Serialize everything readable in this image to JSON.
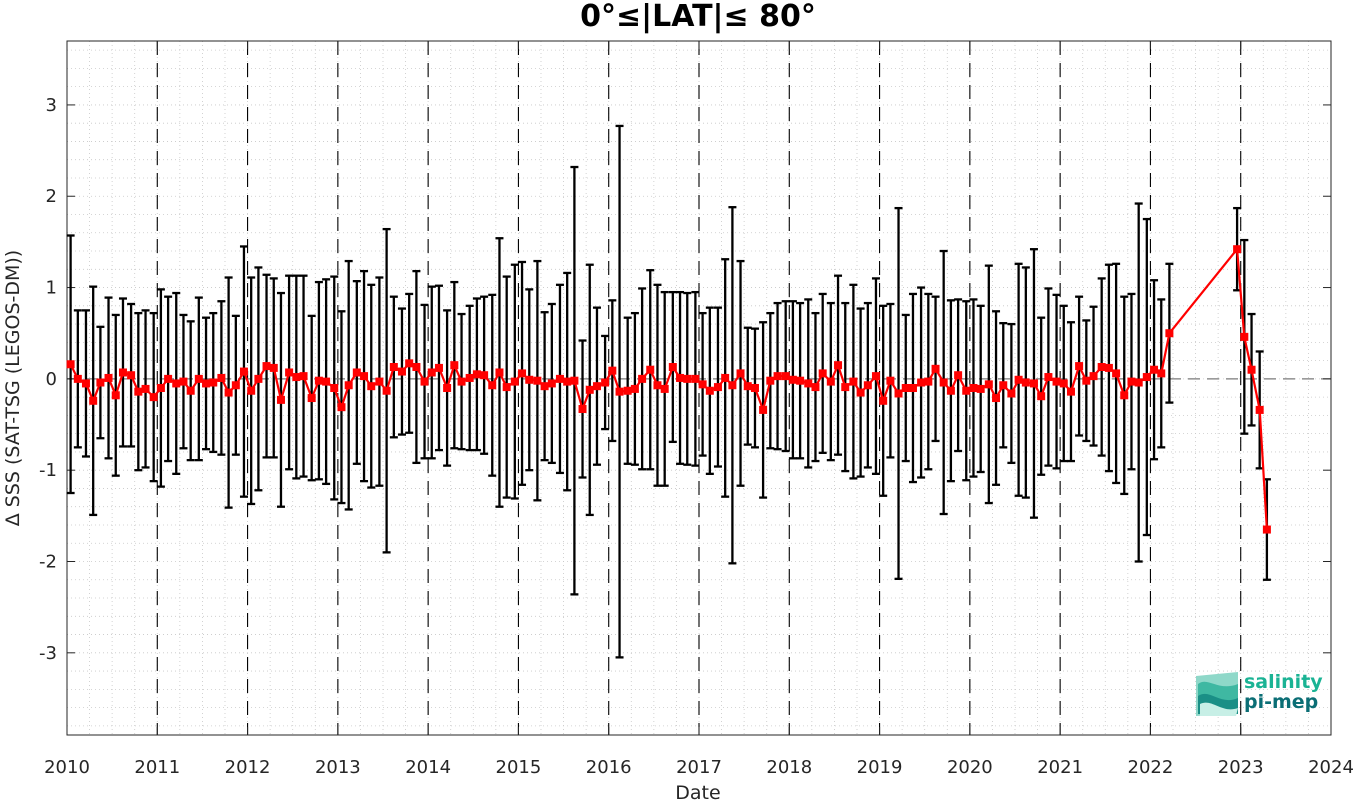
{
  "chart_data": {
    "type": "line",
    "title": "0°≤|LAT|≤ 80°",
    "xlabel": "Date",
    "ylabel": "Δ SSS (SAT-TSG (LEGOS-DM))",
    "xlim": [
      2010,
      2024
    ],
    "ylim": [
      -3.9,
      3.7
    ],
    "x_ticks": [
      2010,
      2011,
      2012,
      2013,
      2014,
      2015,
      2016,
      2017,
      2018,
      2019,
      2020,
      2021,
      2022,
      2023,
      2024
    ],
    "y_ticks": [
      -3,
      -2,
      -1,
      0,
      1,
      2,
      3
    ],
    "grid": "dotted minor grid; dashed vertical lines at year boundaries; dashed horizontal line at zero",
    "legend": "none",
    "series": [
      {
        "color": "#ff0000",
        "marker": "square",
        "error_bar_color": "#000000",
        "points": [
          {
            "x": 2010.04,
            "y": 0.16,
            "err": 1.41
          },
          {
            "x": 2010.12,
            "y": 0.0,
            "err": 0.75
          },
          {
            "x": 2010.21,
            "y": -0.05,
            "err": 0.8
          },
          {
            "x": 2010.29,
            "y": -0.24,
            "err": 1.25
          },
          {
            "x": 2010.37,
            "y": -0.04,
            "err": 0.61
          },
          {
            "x": 2010.46,
            "y": 0.01,
            "err": 0.88
          },
          {
            "x": 2010.54,
            "y": -0.18,
            "err": 0.88
          },
          {
            "x": 2010.62,
            "y": 0.07,
            "err": 0.81
          },
          {
            "x": 2010.71,
            "y": 0.04,
            "err": 0.78
          },
          {
            "x": 2010.79,
            "y": -0.14,
            "err": 0.86
          },
          {
            "x": 2010.87,
            "y": -0.11,
            "err": 0.86
          },
          {
            "x": 2010.96,
            "y": -0.2,
            "err": 0.92
          },
          {
            "x": 2011.04,
            "y": -0.1,
            "err": 1.08
          },
          {
            "x": 2011.12,
            "y": 0.0,
            "err": 0.9
          },
          {
            "x": 2011.21,
            "y": -0.05,
            "err": 0.99
          },
          {
            "x": 2011.29,
            "y": -0.03,
            "err": 0.73
          },
          {
            "x": 2011.37,
            "y": -0.13,
            "err": 0.76
          },
          {
            "x": 2011.46,
            "y": 0.0,
            "err": 0.89
          },
          {
            "x": 2011.54,
            "y": -0.05,
            "err": 0.72
          },
          {
            "x": 2011.62,
            "y": -0.04,
            "err": 0.76
          },
          {
            "x": 2011.71,
            "y": 0.01,
            "err": 0.84
          },
          {
            "x": 2011.79,
            "y": -0.15,
            "err": 1.26
          },
          {
            "x": 2011.87,
            "y": -0.07,
            "err": 0.76
          },
          {
            "x": 2011.96,
            "y": 0.08,
            "err": 1.37
          },
          {
            "x": 2012.04,
            "y": -0.13,
            "err": 1.24
          },
          {
            "x": 2012.12,
            "y": 0.0,
            "err": 1.22
          },
          {
            "x": 2012.21,
            "y": 0.14,
            "err": 1.0
          },
          {
            "x": 2012.29,
            "y": 0.12,
            "err": 0.98
          },
          {
            "x": 2012.37,
            "y": -0.23,
            "err": 1.17
          },
          {
            "x": 2012.46,
            "y": 0.07,
            "err": 1.06
          },
          {
            "x": 2012.54,
            "y": 0.02,
            "err": 1.11
          },
          {
            "x": 2012.62,
            "y": 0.03,
            "err": 1.1
          },
          {
            "x": 2012.71,
            "y": -0.21,
            "err": 0.9
          },
          {
            "x": 2012.79,
            "y": -0.02,
            "err": 1.08
          },
          {
            "x": 2012.87,
            "y": -0.03,
            "err": 1.12
          },
          {
            "x": 2012.96,
            "y": -0.1,
            "err": 1.22
          },
          {
            "x": 2013.04,
            "y": -0.31,
            "err": 1.05
          },
          {
            "x": 2013.12,
            "y": -0.07,
            "err": 1.36
          },
          {
            "x": 2013.21,
            "y": 0.07,
            "err": 1.0
          },
          {
            "x": 2013.29,
            "y": 0.03,
            "err": 1.15
          },
          {
            "x": 2013.37,
            "y": -0.08,
            "err": 1.11
          },
          {
            "x": 2013.46,
            "y": -0.03,
            "err": 1.14
          },
          {
            "x": 2013.54,
            "y": -0.13,
            "err": 1.77
          },
          {
            "x": 2013.62,
            "y": 0.13,
            "err": 0.77
          },
          {
            "x": 2013.71,
            "y": 0.08,
            "err": 0.69
          },
          {
            "x": 2013.79,
            "y": 0.17,
            "err": 0.76
          },
          {
            "x": 2013.87,
            "y": 0.13,
            "err": 1.05
          },
          {
            "x": 2013.96,
            "y": -0.03,
            "err": 0.84
          },
          {
            "x": 2014.04,
            "y": 0.07,
            "err": 0.94
          },
          {
            "x": 2014.12,
            "y": 0.12,
            "err": 0.9
          },
          {
            "x": 2014.21,
            "y": -0.1,
            "err": 0.85
          },
          {
            "x": 2014.29,
            "y": 0.15,
            "err": 0.91
          },
          {
            "x": 2014.37,
            "y": -0.03,
            "err": 0.74
          },
          {
            "x": 2014.46,
            "y": 0.01,
            "err": 0.79
          },
          {
            "x": 2014.54,
            "y": 0.05,
            "err": 0.83
          },
          {
            "x": 2014.62,
            "y": 0.04,
            "err": 0.86
          },
          {
            "x": 2014.71,
            "y": -0.07,
            "err": 0.99
          },
          {
            "x": 2014.79,
            "y": 0.07,
            "err": 1.47
          },
          {
            "x": 2014.87,
            "y": -0.09,
            "err": 1.21
          },
          {
            "x": 2014.96,
            "y": -0.03,
            "err": 1.28
          },
          {
            "x": 2015.04,
            "y": 0.06,
            "err": 1.22
          },
          {
            "x": 2015.12,
            "y": -0.01,
            "err": 0.99
          },
          {
            "x": 2015.21,
            "y": -0.02,
            "err": 1.31
          },
          {
            "x": 2015.29,
            "y": -0.08,
            "err": 0.81
          },
          {
            "x": 2015.37,
            "y": -0.05,
            "err": 0.87
          },
          {
            "x": 2015.46,
            "y": 0.0,
            "err": 1.03
          },
          {
            "x": 2015.54,
            "y": -0.03,
            "err": 1.19
          },
          {
            "x": 2015.62,
            "y": -0.02,
            "err": 2.34
          },
          {
            "x": 2015.71,
            "y": -0.33,
            "err": 0.75
          },
          {
            "x": 2015.79,
            "y": -0.12,
            "err": 1.37
          },
          {
            "x": 2015.87,
            "y": -0.08,
            "err": 0.86
          },
          {
            "x": 2015.96,
            "y": -0.04,
            "err": 0.51
          },
          {
            "x": 2016.04,
            "y": 0.09,
            "err": 0.77
          },
          {
            "x": 2016.12,
            "y": -0.14,
            "err": 2.91
          },
          {
            "x": 2016.21,
            "y": -0.13,
            "err": 0.8
          },
          {
            "x": 2016.29,
            "y": -0.11,
            "err": 0.83
          },
          {
            "x": 2016.37,
            "y": 0.0,
            "err": 0.99
          },
          {
            "x": 2016.46,
            "y": 0.1,
            "err": 1.09
          },
          {
            "x": 2016.54,
            "y": -0.07,
            "err": 1.1
          },
          {
            "x": 2016.62,
            "y": -0.11,
            "err": 1.06
          },
          {
            "x": 2016.71,
            "y": 0.13,
            "err": 0.82
          },
          {
            "x": 2016.79,
            "y": 0.01,
            "err": 0.94
          },
          {
            "x": 2016.87,
            "y": 0.0,
            "err": 0.94
          },
          {
            "x": 2016.96,
            "y": 0.0,
            "err": 0.95
          },
          {
            "x": 2017.04,
            "y": -0.06,
            "err": 0.78
          },
          {
            "x": 2017.12,
            "y": -0.13,
            "err": 0.91
          },
          {
            "x": 2017.21,
            "y": -0.09,
            "err": 0.87
          },
          {
            "x": 2017.29,
            "y": 0.01,
            "err": 1.3
          },
          {
            "x": 2017.37,
            "y": -0.07,
            "err": 1.95
          },
          {
            "x": 2017.46,
            "y": 0.06,
            "err": 1.23
          },
          {
            "x": 2017.54,
            "y": -0.08,
            "err": 0.64
          },
          {
            "x": 2017.62,
            "y": -0.1,
            "err": 0.65
          },
          {
            "x": 2017.71,
            "y": -0.34,
            "err": 0.96
          },
          {
            "x": 2017.79,
            "y": -0.02,
            "err": 0.74
          },
          {
            "x": 2017.87,
            "y": 0.03,
            "err": 0.8
          },
          {
            "x": 2017.96,
            "y": 0.03,
            "err": 0.82
          },
          {
            "x": 2018.04,
            "y": -0.01,
            "err": 0.86
          },
          {
            "x": 2018.12,
            "y": -0.02,
            "err": 0.85
          },
          {
            "x": 2018.21,
            "y": -0.05,
            "err": 0.92
          },
          {
            "x": 2018.29,
            "y": -0.09,
            "err": 0.81
          },
          {
            "x": 2018.37,
            "y": 0.06,
            "err": 0.87
          },
          {
            "x": 2018.46,
            "y": -0.03,
            "err": 0.86
          },
          {
            "x": 2018.54,
            "y": 0.15,
            "err": 0.98
          },
          {
            "x": 2018.62,
            "y": -0.09,
            "err": 0.92
          },
          {
            "x": 2018.71,
            "y": -0.03,
            "err": 1.06
          },
          {
            "x": 2018.79,
            "y": -0.15,
            "err": 0.92
          },
          {
            "x": 2018.87,
            "y": -0.07,
            "err": 0.9
          },
          {
            "x": 2018.96,
            "y": 0.03,
            "err": 1.07
          },
          {
            "x": 2019.04,
            "y": -0.24,
            "err": 1.04
          },
          {
            "x": 2019.12,
            "y": -0.02,
            "err": 0.84
          },
          {
            "x": 2019.21,
            "y": -0.16,
            "err": 2.03
          },
          {
            "x": 2019.29,
            "y": -0.1,
            "err": 0.8
          },
          {
            "x": 2019.37,
            "y": -0.1,
            "err": 1.03
          },
          {
            "x": 2019.46,
            "y": -0.04,
            "err": 1.04
          },
          {
            "x": 2019.54,
            "y": -0.03,
            "err": 0.96
          },
          {
            "x": 2019.62,
            "y": 0.11,
            "err": 0.79
          },
          {
            "x": 2019.71,
            "y": -0.04,
            "err": 1.44
          },
          {
            "x": 2019.79,
            "y": -0.13,
            "err": 0.99
          },
          {
            "x": 2019.87,
            "y": 0.04,
            "err": 0.83
          },
          {
            "x": 2019.96,
            "y": -0.13,
            "err": 0.98
          },
          {
            "x": 2020.04,
            "y": -0.1,
            "err": 0.97
          },
          {
            "x": 2020.12,
            "y": -0.11,
            "err": 0.91
          },
          {
            "x": 2020.21,
            "y": -0.06,
            "err": 1.3
          },
          {
            "x": 2020.29,
            "y": -0.21,
            "err": 0.95
          },
          {
            "x": 2020.37,
            "y": -0.07,
            "err": 0.68
          },
          {
            "x": 2020.46,
            "y": -0.16,
            "err": 0.76
          },
          {
            "x": 2020.54,
            "y": -0.01,
            "err": 1.27
          },
          {
            "x": 2020.62,
            "y": -0.04,
            "err": 1.26
          },
          {
            "x": 2020.71,
            "y": -0.05,
            "err": 1.47
          },
          {
            "x": 2020.79,
            "y": -0.19,
            "err": 0.86
          },
          {
            "x": 2020.87,
            "y": 0.02,
            "err": 0.97
          },
          {
            "x": 2020.96,
            "y": -0.03,
            "err": 0.95
          },
          {
            "x": 2021.04,
            "y": -0.05,
            "err": 0.85
          },
          {
            "x": 2021.12,
            "y": -0.14,
            "err": 0.76
          },
          {
            "x": 2021.21,
            "y": 0.14,
            "err": 0.76
          },
          {
            "x": 2021.29,
            "y": -0.02,
            "err": 0.66
          },
          {
            "x": 2021.37,
            "y": 0.03,
            "err": 0.76
          },
          {
            "x": 2021.46,
            "y": 0.13,
            "err": 0.97
          },
          {
            "x": 2021.54,
            "y": 0.12,
            "err": 1.13
          },
          {
            "x": 2021.62,
            "y": 0.06,
            "err": 1.2
          },
          {
            "x": 2021.71,
            "y": -0.18,
            "err": 1.08
          },
          {
            "x": 2021.79,
            "y": -0.03,
            "err": 0.96
          },
          {
            "x": 2021.87,
            "y": -0.04,
            "err": 1.96
          },
          {
            "x": 2021.96,
            "y": 0.02,
            "err": 1.73
          },
          {
            "x": 2022.04,
            "y": 0.1,
            "err": 0.98
          },
          {
            "x": 2022.12,
            "y": 0.06,
            "err": 0.81
          },
          {
            "x": 2022.21,
            "y": 0.5,
            "err": 0.76
          },
          {
            "x": 2022.96,
            "y": 1.42,
            "err": 0.45
          },
          {
            "x": 2023.04,
            "y": 0.46,
            "err": 1.06
          },
          {
            "x": 2023.12,
            "y": 0.1,
            "err": 0.61
          },
          {
            "x": 2023.21,
            "y": -0.34,
            "err": 0.64
          },
          {
            "x": 2023.29,
            "y": -1.65,
            "err": 0.55
          }
        ]
      }
    ]
  },
  "logo": {
    "line1": "salinity",
    "line2": "pi-mep",
    "color1": "#1ab394",
    "color2": "#0b6e75"
  }
}
